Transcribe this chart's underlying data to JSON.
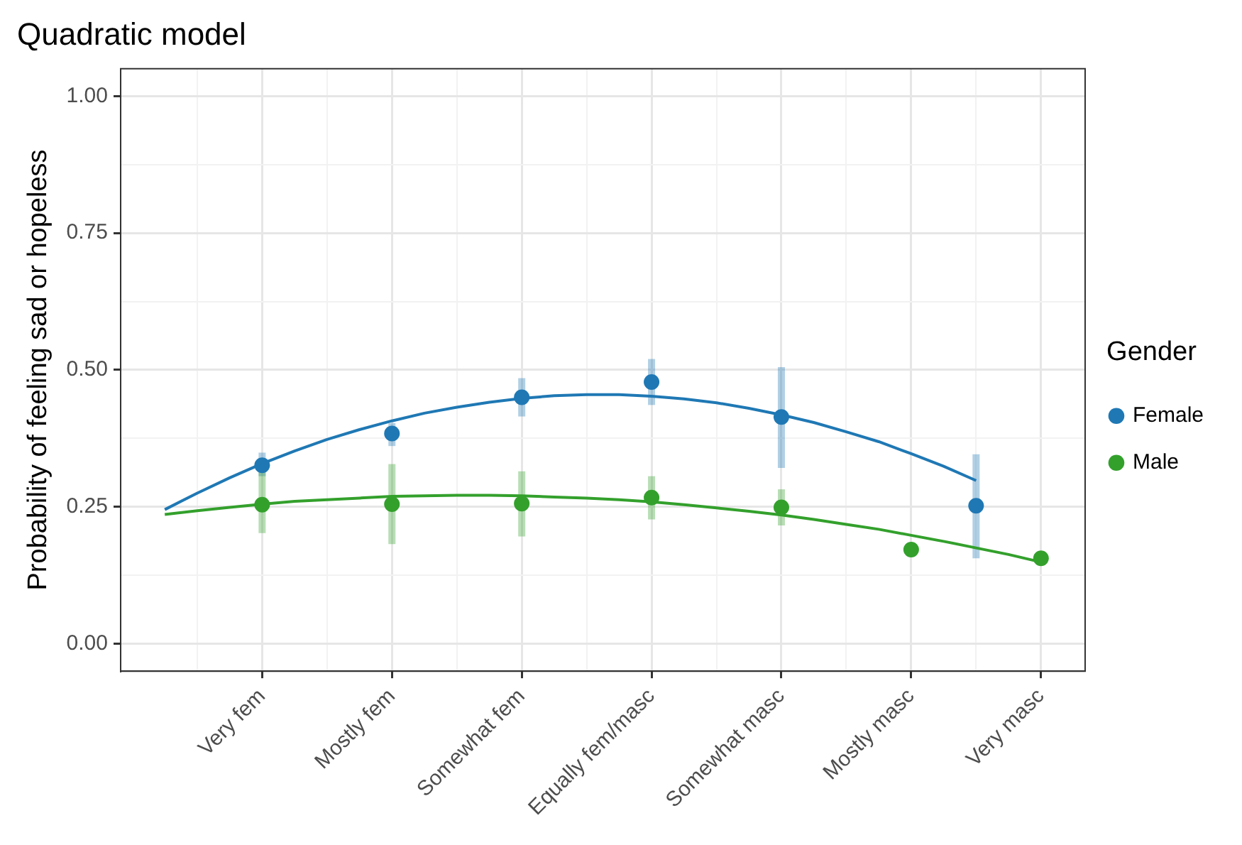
{
  "chart_data": {
    "type": "scatter",
    "title": "Quadratic model",
    "ylabel": "Probability of feeling sad or hopeless",
    "legend_title": "Gender",
    "legend": "right",
    "grid": true,
    "categories": [
      null,
      null,
      null,
      "Very fem",
      null,
      null,
      null,
      "Mostly fem",
      null,
      null,
      null,
      "Somewhat fem",
      null,
      null,
      null,
      "Equally fem/masc",
      null,
      null,
      null,
      "Somewhat masc",
      null,
      null,
      null,
      "Mostly masc",
      null,
      null,
      null,
      "Very masc"
    ],
    "ylim": [
      -0.05,
      1.05
    ],
    "yticks": [
      {
        "value": 0,
        "label": "0.00"
      },
      {
        "value": 0.125,
        "label": null
      },
      {
        "value": 0.25,
        "label": "0.25"
      },
      {
        "value": 0.375,
        "label": null
      },
      {
        "value": 0.5,
        "label": "0.50"
      },
      {
        "value": 0.625,
        "label": null
      },
      {
        "value": 0.75,
        "label": "0.75"
      },
      {
        "value": 0.875,
        "label": null
      },
      {
        "value": 1,
        "label": "1.00"
      }
    ],
    "series": [
      {
        "type": "line",
        "marker": "none",
        "color": "#1f78b4",
        "values": [
          0.245,
          0.275,
          0.303,
          0.329,
          0.352,
          0.373,
          0.391,
          0.407,
          0.421,
          0.432,
          0.441,
          0.448,
          0.453,
          0.455,
          0.455,
          0.452,
          0.447,
          0.44,
          0.43,
          0.418,
          0.404,
          0.387,
          0.369,
          0.347,
          0.324,
          0.298,
          null,
          null
        ]
      },
      {
        "type": "line",
        "marker": "none",
        "color": "#33a02c",
        "values": [
          0.236,
          0.243,
          0.249,
          0.255,
          0.26,
          0.263,
          0.266,
          0.269,
          0.27,
          0.271,
          0.271,
          0.27,
          0.268,
          0.266,
          0.263,
          0.259,
          0.254,
          0.248,
          0.242,
          0.235,
          0.227,
          0.218,
          0.209,
          0.198,
          0.187,
          0.175,
          0.163,
          0.149
        ]
      },
      {
        "name": "Female",
        "marker": "circle",
        "color": "#1f78b4",
        "values": [
          null,
          null,
          null,
          0.326,
          null,
          null,
          null,
          0.384,
          null,
          null,
          null,
          0.45,
          null,
          null,
          null,
          0.478,
          null,
          null,
          null,
          0.414,
          null,
          null,
          null,
          null,
          null,
          0.252,
          null,
          null
        ],
        "errors": [
          null,
          null,
          null,
          [
            0.306,
            0.349
          ],
          null,
          null,
          null,
          [
            0.361,
            0.403
          ],
          null,
          null,
          null,
          [
            0.415,
            0.485
          ],
          null,
          null,
          null,
          [
            0.436,
            0.52
          ],
          null,
          null,
          null,
          [
            0.321,
            0.505
          ],
          null,
          null,
          null,
          null,
          null,
          [
            0.156,
            0.346
          ],
          null,
          null
        ]
      },
      {
        "name": "Male",
        "marker": "circle",
        "color": "#33a02c",
        "values": [
          null,
          null,
          null,
          0.254,
          null,
          null,
          null,
          0.255,
          null,
          null,
          null,
          0.256,
          null,
          null,
          null,
          0.267,
          null,
          null,
          null,
          0.249,
          null,
          null,
          null,
          0.172,
          null,
          null,
          null,
          0.156
        ],
        "errors": [
          null,
          null,
          null,
          [
            0.202,
            0.313
          ],
          null,
          null,
          null,
          [
            0.182,
            0.328
          ],
          null,
          null,
          null,
          [
            0.196,
            0.315
          ],
          null,
          null,
          null,
          [
            0.227,
            0.306
          ],
          null,
          null,
          null,
          [
            0.216,
            0.282
          ],
          null,
          null,
          null,
          [
            0.165,
            0.18
          ],
          null,
          null,
          null,
          [
            0.145,
            0.165
          ]
        ]
      }
    ]
  }
}
